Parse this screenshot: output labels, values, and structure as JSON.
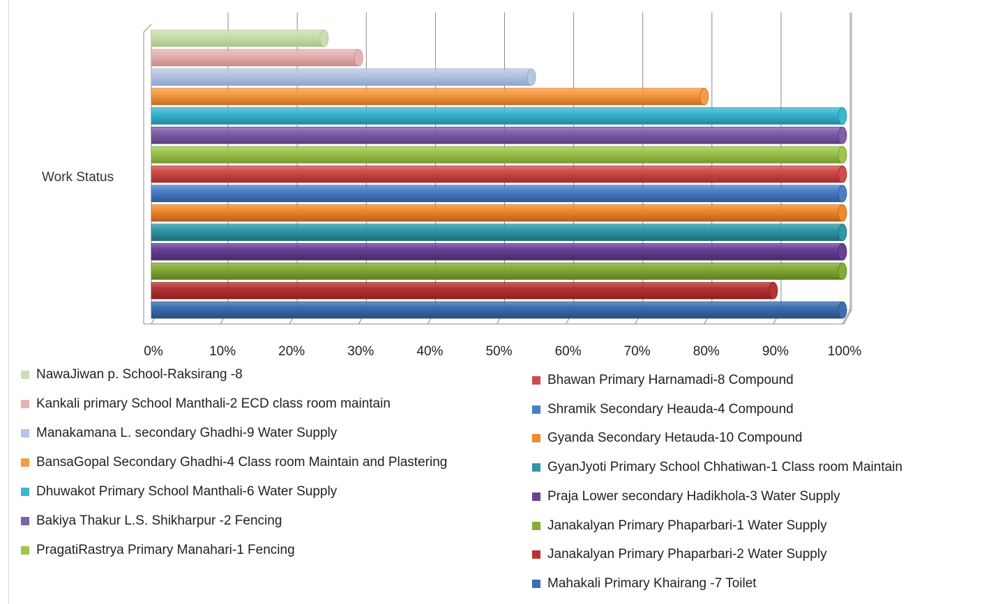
{
  "chart_data": {
    "type": "bar",
    "orientation": "horizontal",
    "three_d": true,
    "category": "Work Status",
    "xlim": [
      0,
      1
    ],
    "x_ticks": [
      "0%",
      "10%",
      "20%",
      "30%",
      "40%",
      "50%",
      "60%",
      "70%",
      "80%",
      "90%",
      "100%"
    ],
    "grid": true,
    "series": [
      {
        "name": "NawaJiwan  p. School-Raksirang -8",
        "value": 0.25,
        "color": "#c9dfb1",
        "stroke": "#a9c48c"
      },
      {
        "name": "Kankali primary School Manthali-2  ECD class room maintain",
        "value": 0.3,
        "color": "#e6b2b2",
        "stroke": "#c88c8c"
      },
      {
        "name": "Manakamana  L. secondary Ghadhi-9 Water Supply",
        "value": 0.55,
        "color": "#b6c6e2",
        "stroke": "#8ea4cc"
      },
      {
        "name": "BansaGopal Secondary Ghadhi-4 Class room Maintain  and Plastering",
        "value": 0.8,
        "color": "#f79a44",
        "stroke": "#c8711e"
      },
      {
        "name": "Dhuwakot Primary School Manthali-6  Water Supply",
        "value": 1.0,
        "color": "#3bb7d1",
        "stroke": "#2289a1"
      },
      {
        "name": "Bakiya Thakur  L.S. Shikharpur -2 Fencing",
        "value": 1.0,
        "color": "#8060a8",
        "stroke": "#5c3f80"
      },
      {
        "name": "PragatiRastrya  Primary  Manahari-1  Fencing",
        "value": 1.0,
        "color": "#9dc550",
        "stroke": "#76982f"
      },
      {
        "name": "Bhawan  Primary  Harnamadi-8  Compound",
        "value": 1.0,
        "color": "#d24b49",
        "stroke": "#9c2f2d"
      },
      {
        "name": "Shramik Secondary Heauda-4  Compound",
        "value": 1.0,
        "color": "#4a7fc7",
        "stroke": "#2f5a96"
      },
      {
        "name": "Gyanda Secondary Hetauda-10  Compound",
        "value": 1.0,
        "color": "#f08a2c",
        "stroke": "#b8621a"
      },
      {
        "name": "GyanJyoti  Primary  School  Chhatiwan-1  Class room  Maintain",
        "value": 1.0,
        "color": "#2f97a8",
        "stroke": "#1e6c79"
      },
      {
        "name": "Praja Lower secondary Hadikhola-3  Water Supply",
        "value": 1.0,
        "color": "#6a3f94",
        "stroke": "#4a2a6c"
      },
      {
        "name": "Janakalyan  Primary  Phaparbari-1  Water Supply",
        "value": 1.0,
        "color": "#84ac36",
        "stroke": "#5f7f22"
      },
      {
        "name": "Janakalyan  Primary  Phaparbari-2  Water Supply",
        "value": 0.9,
        "color": "#b83434",
        "stroke": "#862222"
      },
      {
        "name": "Mahakali  Primary  Khairang -7  Toilet",
        "value": 1.0,
        "color": "#3b6fb0",
        "stroke": "#274f82"
      }
    ]
  }
}
